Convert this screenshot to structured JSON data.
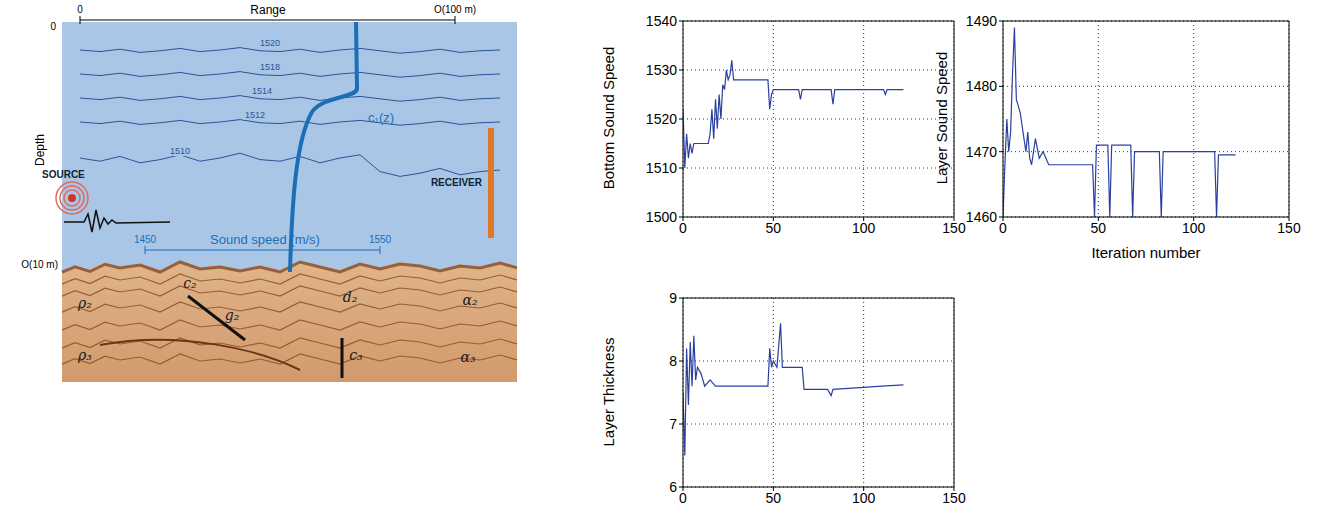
{
  "diagram": {
    "range_label": "Range",
    "range_start": "0",
    "range_end": "O(100 m)",
    "depth_label": "Depth",
    "depth_start": "0",
    "depth_end": "O(10 m)",
    "source": "SOURCE",
    "receiver": "RECEIVER",
    "sound_speed_axis": {
      "label": "Sound speed (m/s)",
      "ticks": [
        1450,
        1550
      ]
    },
    "profile_label": "c₁(z)",
    "contours": [
      1520,
      1518,
      1514,
      1512,
      1510
    ],
    "layer_labels": [
      "ρ₂",
      "c₂",
      "g₂",
      "d₂",
      "α₂",
      "ρ₃",
      "c₃",
      "α₃"
    ]
  },
  "chart_data": [
    {
      "type": "line",
      "ylabel": "Bottom Sound Speed",
      "color": "#2b3fa0",
      "grid": true,
      "xlim": [
        0,
        150
      ],
      "xticks": [
        0,
        50,
        100,
        150
      ],
      "ylim": [
        1500,
        1540
      ],
      "yticks": [
        1500,
        1510,
        1520,
        1530,
        1540
      ],
      "x": [
        0,
        1,
        2,
        3,
        4,
        5,
        6,
        8,
        10,
        12,
        14,
        15,
        16,
        17,
        18,
        19,
        20,
        21,
        22,
        23,
        24,
        25,
        26,
        27,
        28,
        30,
        35,
        40,
        45,
        47,
        48,
        49,
        50,
        55,
        60,
        64,
        65,
        66,
        70,
        75,
        80,
        82,
        83,
        84,
        90,
        100,
        110,
        111,
        112,
        113,
        118,
        122
      ],
      "values": [
        1522,
        1510,
        1517,
        1512,
        1515,
        1513,
        1515,
        1515,
        1515,
        1515,
        1515,
        1517,
        1522,
        1516,
        1524,
        1518,
        1525,
        1520,
        1527,
        1526,
        1530,
        1528,
        1529,
        1532,
        1528,
        1528,
        1528,
        1528,
        1528,
        1528,
        1522,
        1525,
        1526,
        1526,
        1526,
        1526,
        1524,
        1526,
        1526,
        1526,
        1526,
        1526,
        1523,
        1526,
        1526,
        1526,
        1526,
        1526,
        1525,
        1526,
        1526,
        1526
      ]
    },
    {
      "type": "line",
      "ylabel": "Layer Sound Speed",
      "xlabel": "Iteration number",
      "color": "#2b3fa0",
      "grid": true,
      "xlim": [
        0,
        150
      ],
      "xticks": [
        0,
        50,
        100,
        150
      ],
      "ylim": [
        1460,
        1490
      ],
      "yticks": [
        1460,
        1470,
        1480,
        1490
      ],
      "x": [
        0,
        1,
        2,
        3,
        4,
        5,
        6,
        7,
        8,
        9,
        10,
        12,
        13,
        14,
        15,
        17,
        19,
        21,
        24,
        30,
        40,
        47,
        48,
        49,
        50,
        55,
        56,
        57,
        60,
        67,
        68,
        69,
        75,
        82,
        83,
        84,
        90,
        100,
        111,
        112,
        113,
        118,
        122
      ],
      "values": [
        1460,
        1468,
        1475,
        1470,
        1473,
        1482,
        1489,
        1478,
        1477,
        1476,
        1474,
        1470,
        1473,
        1469,
        1468,
        1472,
        1469,
        1470,
        1468,
        1468,
        1468,
        1468,
        1460,
        1471,
        1471,
        1471,
        1460,
        1471,
        1471,
        1471,
        1460,
        1470,
        1470,
        1470,
        1460,
        1470,
        1470,
        1470,
        1470,
        1460,
        1469.5,
        1469.5,
        1469.5
      ]
    },
    {
      "type": "line",
      "ylabel": "Layer Thickness",
      "color": "#2b3fa0",
      "grid": true,
      "xlim": [
        0,
        150
      ],
      "xticks": [
        0,
        50,
        100,
        150
      ],
      "ylim": [
        6,
        9
      ],
      "yticks": [
        6,
        7,
        8,
        9
      ],
      "x": [
        0,
        1,
        2,
        3,
        4,
        5,
        6,
        7,
        8,
        10,
        12,
        15,
        18,
        20,
        25,
        30,
        47,
        48,
        49,
        50,
        52,
        54,
        55,
        60,
        66,
        67,
        80,
        82,
        83,
        100,
        110,
        122
      ],
      "values": [
        7.5,
        6.5,
        8.2,
        7.3,
        8.3,
        7.6,
        8.4,
        7.7,
        7.9,
        7.8,
        7.6,
        7.7,
        7.6,
        7.6,
        7.6,
        7.6,
        7.6,
        8.2,
        7.9,
        8.0,
        7.9,
        8.6,
        7.9,
        7.9,
        7.9,
        7.55,
        7.55,
        7.45,
        7.55,
        7.58,
        7.6,
        7.62
      ]
    }
  ]
}
